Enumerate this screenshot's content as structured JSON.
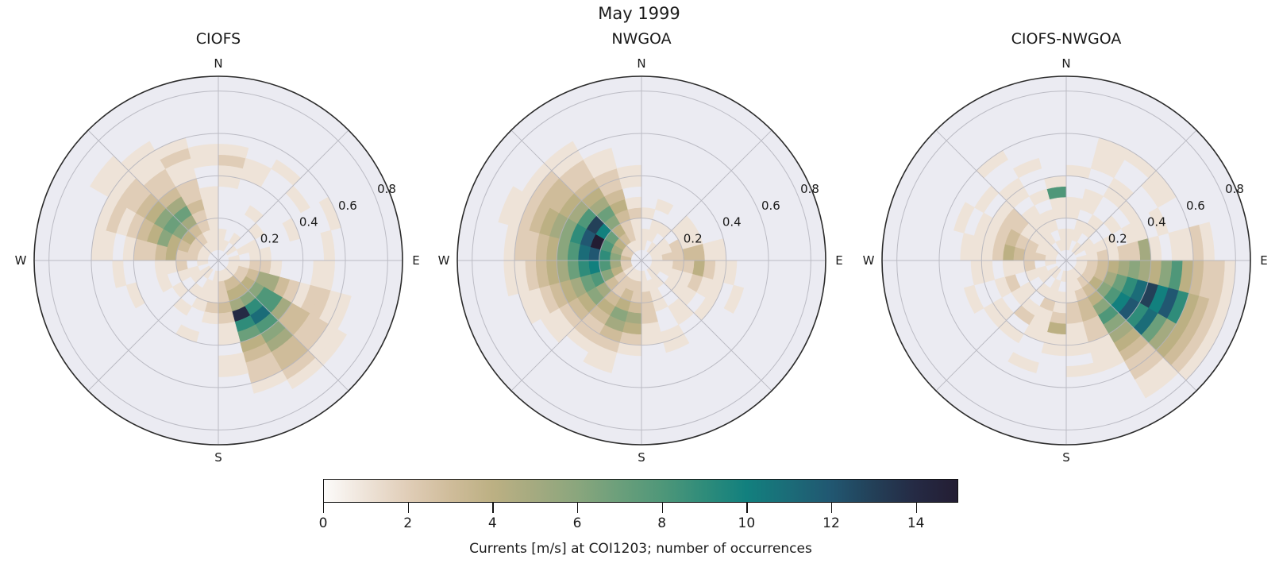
{
  "figure": {
    "title": "May 1999"
  },
  "axes_style": {
    "background": "#ebebf2",
    "grid_color": "#b3b3bc",
    "spine_color": "#2b2b2b",
    "radial_ticks": [
      0.2,
      0.4,
      0.6,
      0.8
    ],
    "radial_max": 0.87,
    "radial_label_azimuth_deg": 67,
    "spoke_step_deg": 45,
    "compass": {
      "n": "N",
      "e": "E",
      "s": "S",
      "w": "W"
    }
  },
  "colorbar": {
    "label": "Currents [m/s] at COI1203; number of occurrences",
    "vmin": 0,
    "vmax": 15,
    "ticks": [
      0,
      2,
      4,
      6,
      8,
      10,
      12,
      14
    ],
    "stops": [
      [
        0,
        "#fcfbfa"
      ],
      [
        1,
        "#eee3d8"
      ],
      [
        2,
        "#e0cdb7"
      ],
      [
        3,
        "#cfbc9a"
      ],
      [
        4,
        "#bcb083"
      ],
      [
        5,
        "#a4aa80"
      ],
      [
        6,
        "#8aa67d"
      ],
      [
        7,
        "#6b9f7b"
      ],
      [
        8,
        "#4f9779"
      ],
      [
        9,
        "#2f8c7a"
      ],
      [
        10,
        "#12807e"
      ],
      [
        11,
        "#1b6c78"
      ],
      [
        12,
        "#215771"
      ],
      [
        13,
        "#234058"
      ],
      [
        14,
        "#252a44"
      ],
      [
        15,
        "#231d33"
      ]
    ]
  },
  "chart_data": [
    {
      "type": "heatmap",
      "subtype": "polar current rose (2D histogram: direction x speed, color = number of occurrences)",
      "title": "CIOFS",
      "direction_bin_deg": 15,
      "direction_bins_start": "N, clockwise",
      "speed_ring_width_ms": 0.05,
      "value_scale": "each hex char = occurrence count 0-15 for successive 0.05 m/s rings from center",
      "counts_hex_by_direction": [
        "0110000112100000",
        "0100000011000000",
        "0010010000100000",
        "0100100001000000",
        "0011000100010000",
        "0101100000100000",
        "0112210001100000",
        "0123553212211000",
        "0124688533221100",
        "013469b865332100",
        "01345e9743221000",
        "0122321101100000",
        "0111210000000000",
        "0011100100000000",
        "0101010000000000",
        "0110100000000000",
        "0011010010000000",
        "0102110001000000",
        "0122432210110000",
        "0123464321210000",
        "0124676432211100",
        "0123575322111000",
        "0112232211210000",
        "0111111001100000"
      ]
    },
    {
      "type": "heatmap",
      "subtype": "polar current rose (2D histogram: direction x speed, color = number of occurrences)",
      "title": "NWGOA",
      "direction_bin_deg": 15,
      "direction_bins_start": "N, clockwise",
      "speed_ring_width_ms": 0.05,
      "value_scale": "each hex char = occurrence count 0-15 for successive 0.05 m/s rings from center",
      "counts_hex_by_direction": [
        "0110100000000000",
        "0011010000000000",
        "0101000000000000",
        "0110110000000000",
        "0112110000000000",
        "0122331100000000",
        "0112242110000000",
        "0111121101000000",
        "0101110100000000",
        "0110011000000000",
        "0011100110000000",
        "0112221100000000",
        "0122354210000000",
        "0123465321100000",
        "0122343221000000",
        "0123564321100000",
        "0246875432110000",
        "0258a97543211000",
        "0369cb8643221000",
        "0258fc9654321100",
        "0247ad8543321000",
        "0134675432211000",
        "0122343221100000",
        "0111210110000000"
      ]
    },
    {
      "type": "heatmap",
      "subtype": "polar current rose (2D histogram: direction x speed, color = number of occurrences)",
      "title": "CIOFS-NWGOA",
      "direction_bin_deg": 15,
      "direction_bins_start": "N, clockwise",
      "speed_ring_width_ms": 0.05,
      "value_scale": "each hex char = occurrence count 0-15 for successive 0.05 m/s rings from center",
      "counts_hex_by_direction": [
        "0110110010000000",
        "0011011001110000",
        "0101100110010000",
        "0110010100110000",
        "0011101101000000",
        "0112122510112100",
        "0123456546843221",
        "0123579bdac94321",
        "012468ac9b754321",
        "0123468654322110",
        "0112332211100000",
        "0111221110100000",
        "0101124110000000",
        "0011211100100000",
        "0101012010000000",
        "0110110110000000",
        "0011021001000000",
        "0102110110000000",
        "0122342111000000",
        "0112232110100000",
        "0111122101000000",
        "0011110110010000",
        "0101101001000000",
        "0110118100000000"
      ]
    }
  ]
}
